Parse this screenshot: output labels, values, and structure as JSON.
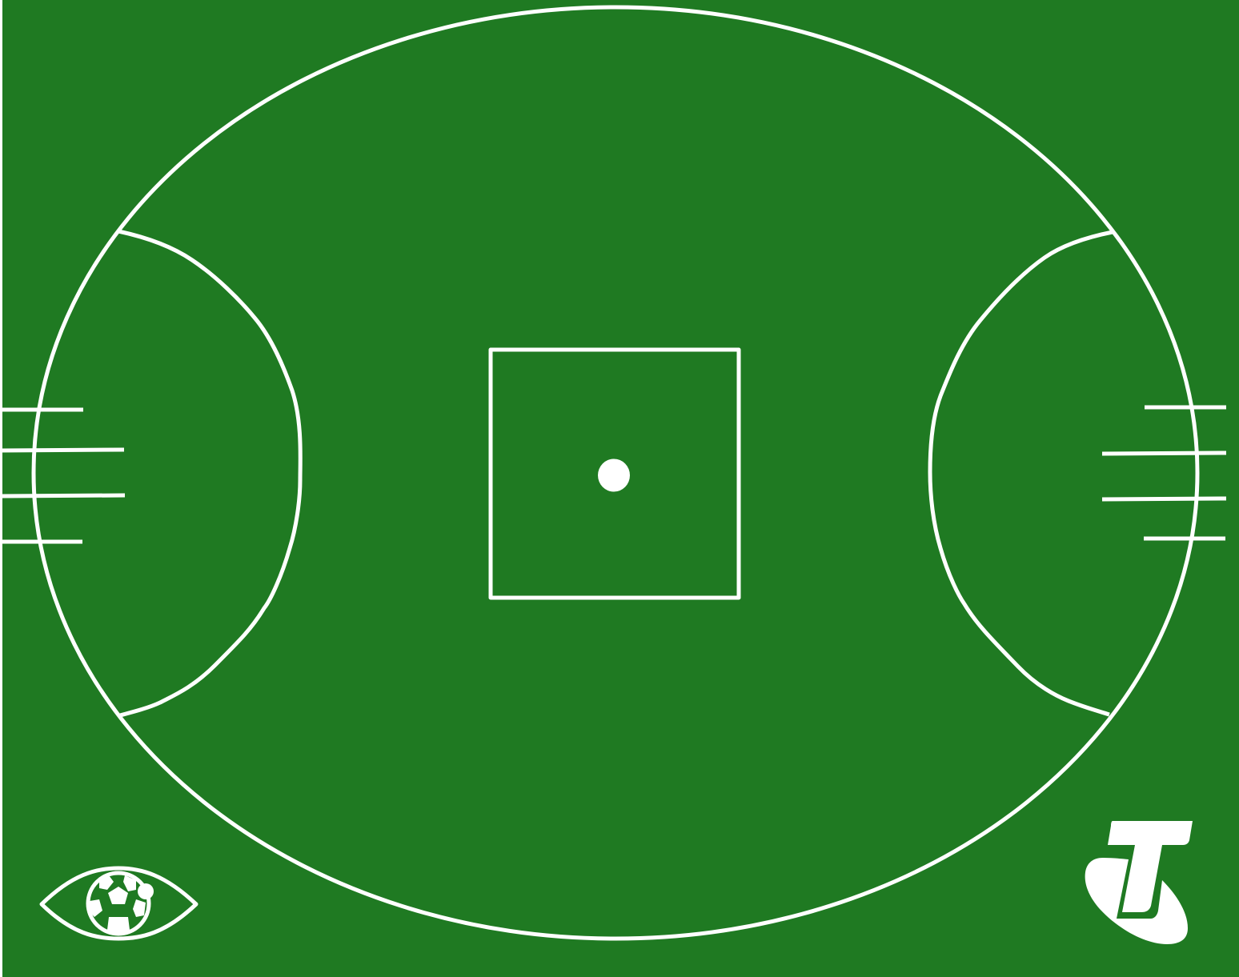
{
  "field": {
    "surface_color": "#1f7a22",
    "line_color": "#ffffff",
    "edge_color": "#ffffff"
  },
  "icons": {
    "left_logo": "eye-football-icon",
    "right_logo": "telstra-t-icon"
  }
}
